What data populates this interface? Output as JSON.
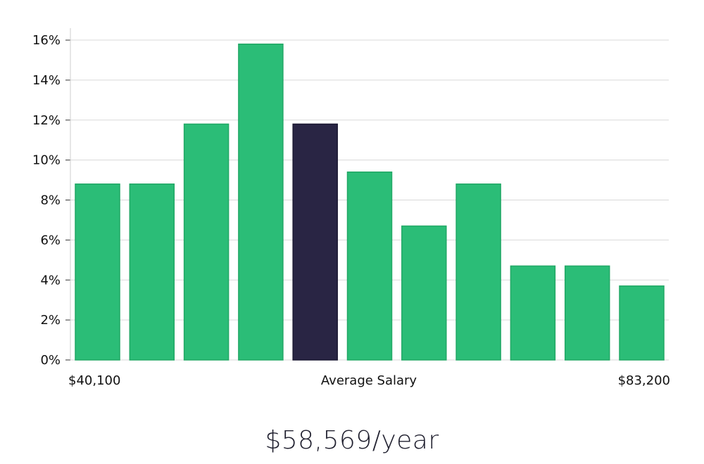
{
  "chart_data": {
    "type": "bar",
    "title": "",
    "xlabel": "Average Salary",
    "ylabel": "",
    "x_range_labels": {
      "min": "$40,100",
      "max": "$83,200"
    },
    "ylim": [
      0,
      16.6
    ],
    "y_ticks": [
      0,
      2,
      4,
      6,
      8,
      10,
      12,
      14,
      16
    ],
    "y_tick_format": "%",
    "grid": true,
    "values": [
      8.8,
      8.8,
      11.8,
      15.8,
      11.8,
      9.4,
      6.7,
      8.8,
      4.7,
      4.7,
      3.7
    ],
    "highlight_index": 4,
    "colors": {
      "bar": "#2bbd77",
      "highlight": "#292544",
      "grid": "#d9d9d9",
      "axis": "#cccccc"
    }
  },
  "summary": {
    "average_salary_text": "$58,569/year"
  }
}
